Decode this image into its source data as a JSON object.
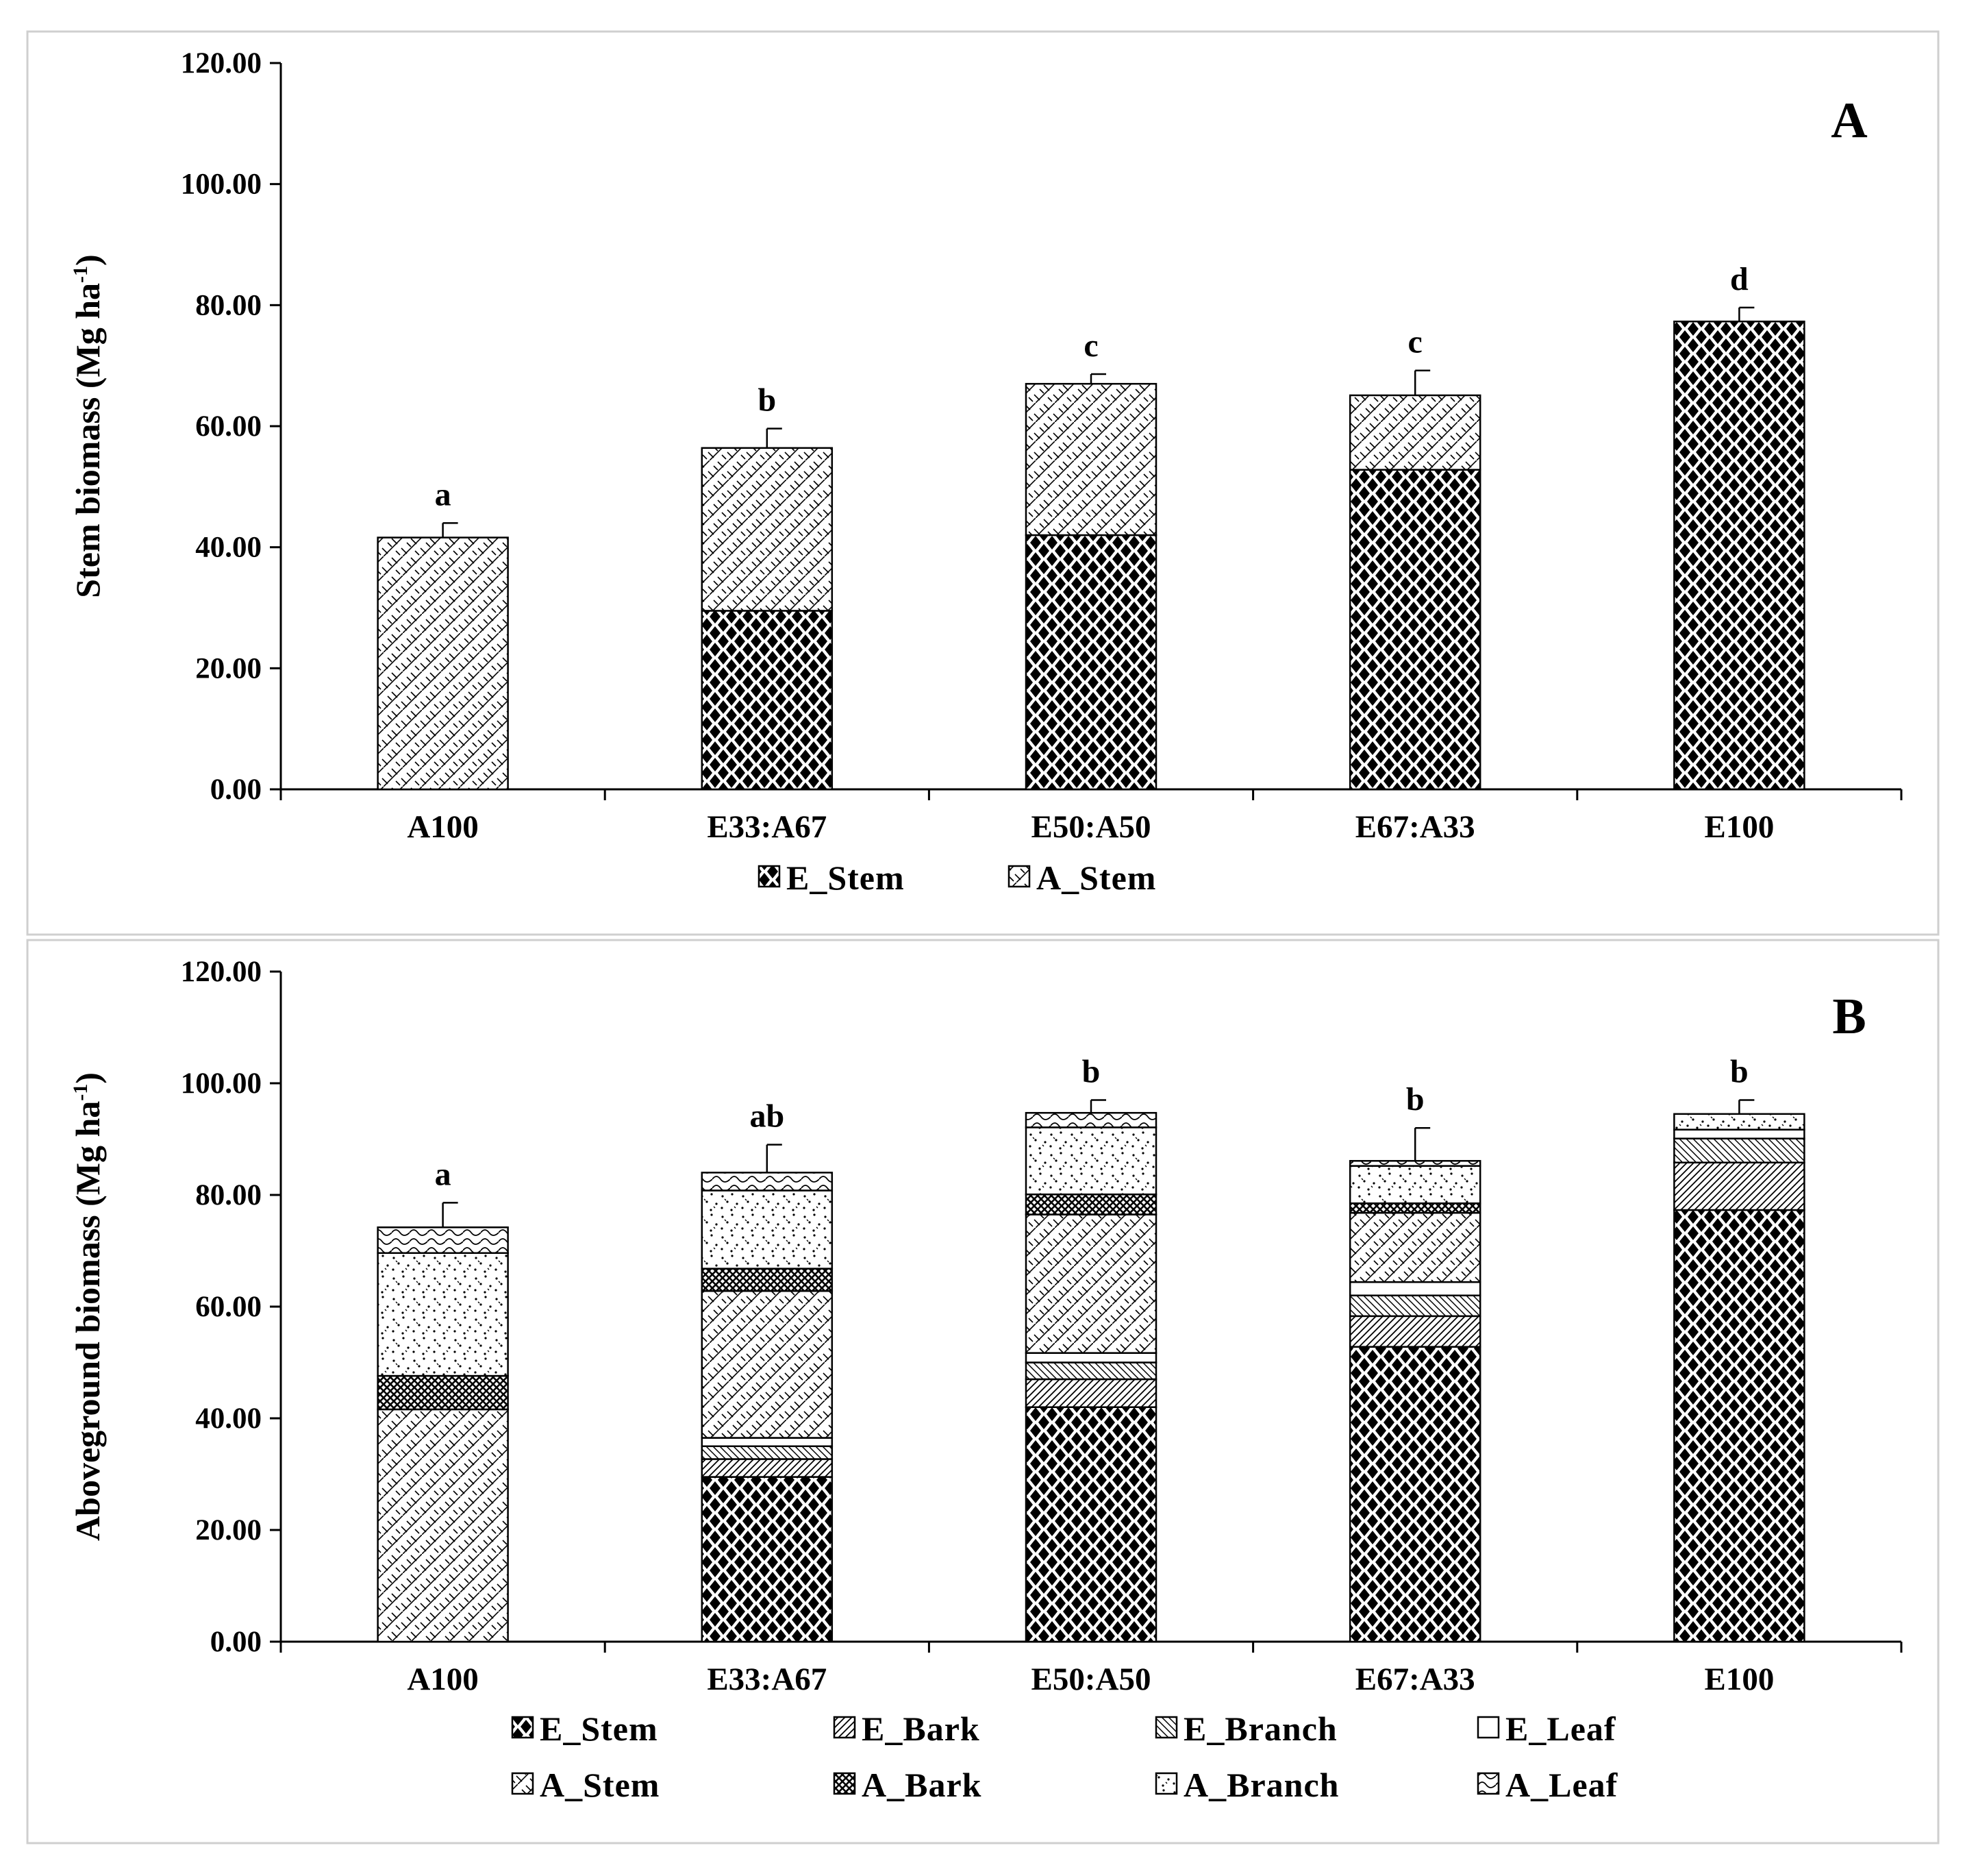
{
  "chart_data": [
    {
      "type": "bar",
      "stacked": true,
      "panel_label": "A",
      "title": "",
      "xlabel": "",
      "ylabel": "Stem biomass (Mg ha",
      "ylabel_sup": "-1",
      "ylabel_close": ")",
      "ylim": [
        0,
        120
      ],
      "yticks": [
        "0.00",
        "20.00",
        "40.00",
        "60.00",
        "80.00",
        "100.00",
        "120.00"
      ],
      "categories": [
        "A100",
        "E33:A67",
        "E50:A50",
        "E67:A33",
        "E100"
      ],
      "series": [
        {
          "name": "E_Stem",
          "pattern": "e_stem",
          "values": [
            0,
            29.5,
            42.0,
            52.8,
            77.3
          ]
        },
        {
          "name": "A_Stem",
          "pattern": "a_stem",
          "values": [
            41.6,
            26.9,
            25.0,
            12.3,
            0
          ]
        }
      ],
      "error_top": [
        44.0,
        59.6,
        68.6,
        69.2,
        79.6
      ],
      "significance": [
        "a",
        "b",
        "c",
        "c",
        "d"
      ],
      "legend": [
        "E_Stem",
        "A_Stem"
      ],
      "legend_position": "bottom"
    },
    {
      "type": "bar",
      "stacked": true,
      "panel_label": "B",
      "title": "",
      "xlabel": "",
      "ylabel": "Aboveground  biomass (Mg ha",
      "ylabel_sup": "-1",
      "ylabel_close": ")",
      "ylim": [
        0,
        120
      ],
      "yticks": [
        "0.00",
        "20.00",
        "40.00",
        "60.00",
        "80.00",
        "100.00",
        "120.00"
      ],
      "categories": [
        "A100",
        "E33:A67",
        "E50:A50",
        "E67:A33",
        "E100"
      ],
      "series": [
        {
          "name": "E_Stem",
          "pattern": "e_stem",
          "values": [
            0,
            29.5,
            42.0,
            52.8,
            77.3
          ]
        },
        {
          "name": "E_Bark",
          "pattern": "e_bark",
          "values": [
            0,
            3.2,
            5.0,
            5.5,
            8.5
          ]
        },
        {
          "name": "E_Branch",
          "pattern": "e_branch",
          "values": [
            0,
            2.3,
            3.0,
            3.7,
            4.3
          ]
        },
        {
          "name": "E_Leaf",
          "pattern": "e_leaf",
          "values": [
            0,
            1.5,
            1.7,
            2.4,
            1.6
          ]
        },
        {
          "name": "A_Stem",
          "pattern": "a_stem",
          "values": [
            41.6,
            26.3,
            24.8,
            12.4,
            0
          ]
        },
        {
          "name": "A_Bark",
          "pattern": "a_bark",
          "values": [
            6.0,
            4.0,
            3.6,
            1.7,
            0
          ]
        },
        {
          "name": "A_Branch",
          "pattern": "a_branch",
          "values": [
            22.0,
            14.0,
            12.0,
            6.7,
            2.8
          ]
        },
        {
          "name": "A_Leaf",
          "pattern": "a_leaf",
          "values": [
            4.6,
            3.2,
            2.6,
            0.9,
            0
          ]
        }
      ],
      "error_top": [
        78.6,
        89.0,
        97.0,
        92.0,
        97.0
      ],
      "significance": [
        "a",
        "ab",
        "b",
        "b",
        "b"
      ],
      "legend": [
        "E_Stem",
        "E_Bark",
        "E_Branch",
        "E_Leaf",
        "A_Stem",
        "A_Bark",
        "A_Branch",
        "A_Leaf"
      ],
      "legend_position": "bottom"
    }
  ]
}
